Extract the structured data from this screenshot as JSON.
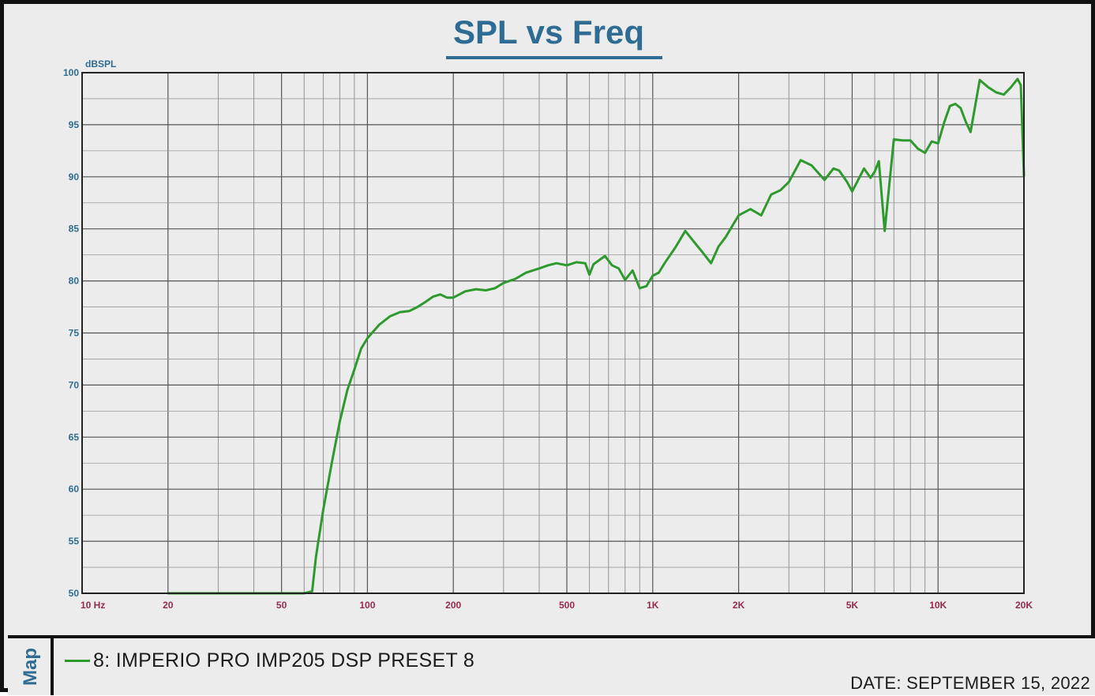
{
  "chart_data": {
    "type": "line",
    "title": "SPL vs Freq",
    "ylabel": "dBSPL",
    "xlabel": "",
    "x_scale": "log",
    "xlim": [
      10,
      20000
    ],
    "ylim": [
      50,
      100
    ],
    "grid": true,
    "legend_position": "bottom",
    "x_ticks": [
      {
        "value": 10,
        "label": "10  Hz"
      },
      {
        "value": 20,
        "label": "20"
      },
      {
        "value": 50,
        "label": "50"
      },
      {
        "value": 100,
        "label": "100"
      },
      {
        "value": 200,
        "label": "200"
      },
      {
        "value": 500,
        "label": "500"
      },
      {
        "value": 1000,
        "label": "1K"
      },
      {
        "value": 2000,
        "label": "2K"
      },
      {
        "value": 5000,
        "label": "5K"
      },
      {
        "value": 10000,
        "label": "10K"
      },
      {
        "value": 20000,
        "label": "20K"
      }
    ],
    "y_ticks": [
      100,
      95,
      90,
      85,
      80,
      75,
      70,
      65,
      60,
      55,
      50
    ],
    "series": [
      {
        "name": "8: IMPERIO PRO IMP205 DSP PRESET 8",
        "color": "#2e9a2e",
        "x": [
          20,
          40,
          60,
          64,
          66,
          70,
          75,
          80,
          85,
          90,
          95,
          100,
          110,
          120,
          130,
          140,
          150,
          160,
          170,
          180,
          190,
          200,
          220,
          240,
          260,
          280,
          300,
          330,
          360,
          400,
          430,
          460,
          500,
          540,
          580,
          600,
          620,
          680,
          720,
          760,
          800,
          850,
          900,
          950,
          1000,
          1050,
          1100,
          1200,
          1300,
          1400,
          1500,
          1600,
          1700,
          1800,
          2000,
          2200,
          2400,
          2600,
          2800,
          3000,
          3300,
          3600,
          4000,
          4300,
          4500,
          4800,
          5000,
          5200,
          5500,
          5800,
          6000,
          6200,
          6500,
          7000,
          7500,
          8000,
          8500,
          9000,
          9500,
          10000,
          10500,
          11000,
          11500,
          12000,
          12500,
          13000,
          14000,
          15000,
          16000,
          17000,
          18000,
          19000,
          19500,
          20000
        ],
        "y": [
          50,
          50,
          50,
          50.2,
          53.5,
          58,
          62.5,
          66.5,
          69.5,
          71.5,
          73.5,
          74.5,
          75.8,
          76.6,
          77,
          77.1,
          77.5,
          78,
          78.5,
          78.7,
          78.4,
          78.4,
          79,
          79.2,
          79.1,
          79.3,
          79.8,
          80.2,
          80.8,
          81.2,
          81.5,
          81.7,
          81.5,
          81.8,
          81.7,
          80.6,
          81.6,
          82.4,
          81.5,
          81.2,
          80.1,
          81,
          79.3,
          79.5,
          80.5,
          80.8,
          81.7,
          83.2,
          84.8,
          83.7,
          82.7,
          81.7,
          83.3,
          84.2,
          86.3,
          86.9,
          86.3,
          88.3,
          88.7,
          89.5,
          91.6,
          91.1,
          89.7,
          90.8,
          90.6,
          89.5,
          88.6,
          89.5,
          90.8,
          89.9,
          90.5,
          91.5,
          84.8,
          93.6,
          93.5,
          93.5,
          92.7,
          92.3,
          93.4,
          93.2,
          95.2,
          96.8,
          97,
          96.6,
          95.3,
          94.3,
          99.3,
          98.6,
          98.1,
          97.9,
          98.6,
          99.4,
          98.8,
          90.1
        ]
      }
    ]
  },
  "legend": {
    "tab_label": "Map",
    "entry_label": "8: IMPERIO PRO IMP205 DSP PRESET 8"
  },
  "footer": {
    "date_text": "DATE: SEPTEMBER 15, 2022"
  },
  "colors": {
    "title": "#2e6c94",
    "axis_y_labels": "#2e6c94",
    "axis_x_labels": "#9b2a4a",
    "series": "#2e9a2e",
    "grid": "#5a5a5a"
  }
}
